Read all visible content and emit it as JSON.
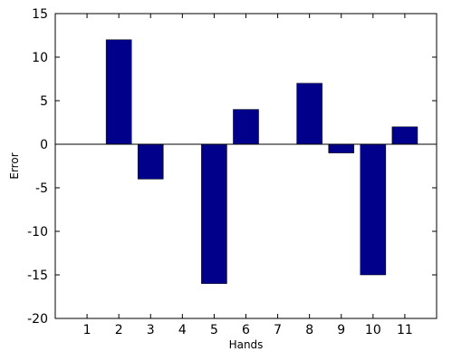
{
  "chart_data": {
    "type": "bar",
    "title": "",
    "xlabel": "Hands",
    "ylabel": "Error",
    "categories": [
      "1",
      "2",
      "3",
      "4",
      "5",
      "6",
      "7",
      "8",
      "9",
      "10",
      "11"
    ],
    "values": [
      0,
      12,
      -4,
      0,
      -16,
      4,
      0,
      7,
      -1,
      -15,
      2
    ],
    "ylim": [
      -20,
      15
    ],
    "yticks": [
      -20,
      -15,
      -10,
      -5,
      0,
      5,
      10,
      15
    ],
    "grid": false,
    "bar_color": "#00008B",
    "axis_color": "#000000"
  }
}
